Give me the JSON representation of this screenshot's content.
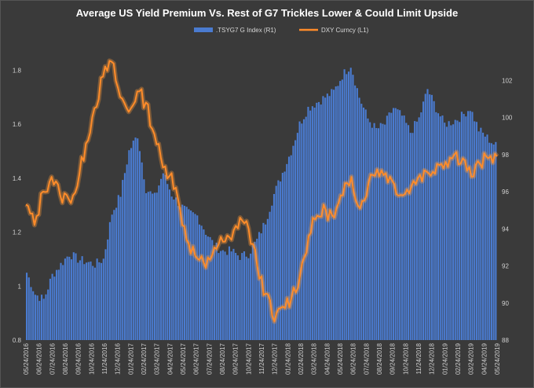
{
  "chart_data": {
    "type": "bar+line",
    "title": "Average US Yield Premium Vs. Rest of G7 Trickles Lower & Could Limit Upside",
    "legend": [
      {
        "label": ".TSYG7 G Index  (R1)",
        "color": "#4a7bd0",
        "kind": "bar"
      },
      {
        "label": "DXY Curncy  (L1)",
        "color": "#ff8c2a",
        "kind": "line"
      }
    ],
    "left_axis": {
      "min": 0.8,
      "max": 1.9,
      "ticks": [
        "0.8",
        "1",
        "1.2",
        "1.4",
        "1.6",
        "1.8"
      ],
      "tick_values": [
        0.8,
        1.0,
        1.2,
        1.4,
        1.6,
        1.8
      ]
    },
    "right_axis": {
      "min": 88,
      "max": 104,
      "ticks": [
        "88",
        "90",
        "92",
        "94",
        "96",
        "98",
        "100",
        "102"
      ],
      "tick_values": [
        88,
        90,
        92,
        94,
        96,
        98,
        100,
        102
      ]
    },
    "x_ticks": [
      "05/24/2016",
      "06/24/2016",
      "07/24/2016",
      "08/24/2016",
      "09/24/2016",
      "10/24/2016",
      "11/24/2016",
      "12/24/2016",
      "01/24/2017",
      "02/24/2017",
      "03/24/2017",
      "04/24/2017",
      "05/24/2017",
      "06/24/2017",
      "07/24/2017",
      "08/24/2017",
      "09/24/2017",
      "10/24/2017",
      "11/24/2017",
      "12/24/2017",
      "01/24/2018",
      "02/24/2018",
      "03/24/2018",
      "04/24/2018",
      "05/24/2018",
      "06/24/2018",
      "07/24/2018",
      "08/24/2018",
      "09/24/2018",
      "10/24/2018",
      "11/24/2018",
      "12/24/2018",
      "01/24/2019",
      "02/24/2019",
      "03/24/2019",
      "04/24/2019",
      "05/24/2019"
    ],
    "series": [
      {
        "name": ".TSYG7 G Index  (R1)",
        "axis": "left",
        "kind": "bar",
        "color": "#4a7bd0",
        "values": [
          1.05,
          0.97,
          0.95,
          1.04,
          1.08,
          1.12,
          1.1,
          1.09,
          1.08,
          1.1,
          1.27,
          1.34,
          1.5,
          1.56,
          1.36,
          1.33,
          1.42,
          1.34,
          1.3,
          1.27,
          1.26,
          1.2,
          1.15,
          1.13,
          1.13,
          1.11,
          1.12,
          1.17,
          1.24,
          1.34,
          1.42,
          1.5,
          1.6,
          1.66,
          1.68,
          1.7,
          1.72,
          1.78,
          1.82,
          1.7,
          1.62,
          1.58,
          1.6,
          1.66,
          1.63,
          1.57,
          1.62,
          1.73,
          1.66,
          1.6,
          1.61,
          1.63,
          1.66,
          1.58,
          1.55,
          1.52
        ]
      },
      {
        "name": "DXY Curncy  (L1)",
        "axis": "right",
        "kind": "line",
        "color": "#ff8c2a",
        "values": [
          95.3,
          94.2,
          96.0,
          96.8,
          95.8,
          95.6,
          96.3,
          98.6,
          100.5,
          102.2,
          103.0,
          101.1,
          100.3,
          101.4,
          100.8,
          99.1,
          97.3,
          97.0,
          95.0,
          93.2,
          92.4,
          91.9,
          93.0,
          93.3,
          93.4,
          94.6,
          94.0,
          92.0,
          90.5,
          89.0,
          89.8,
          90.3,
          91.5,
          93.6,
          94.7,
          95.0,
          94.6,
          95.8,
          96.8,
          95.1,
          96.5,
          97.2,
          97.0,
          96.4,
          95.8,
          96.3,
          96.9,
          97.0,
          97.5,
          97.6,
          98.0,
          97.8,
          96.8,
          97.5,
          97.8,
          97.9
        ]
      }
    ],
    "grid": false
  }
}
